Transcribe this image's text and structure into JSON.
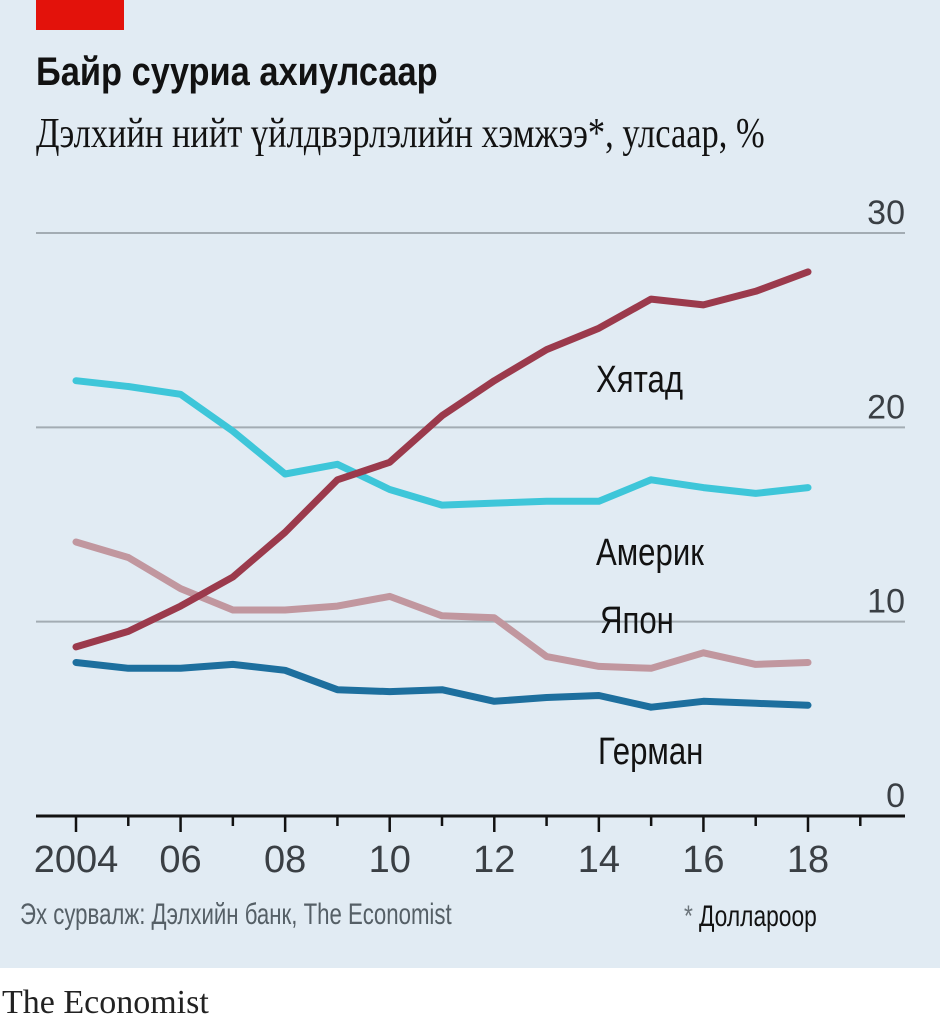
{
  "header": {
    "title": "Байр сууриа ахиулсаар",
    "subtitle": "Дэлхийн нийт үйлдвэрлэлийн хэмжээ*, улсаар, %"
  },
  "footer": {
    "source": "Эх сурвалж: Дэлхийн банк, The Economist",
    "footnote_mark": "*",
    "footnote_text": "Доллароор",
    "brand": "The Economist"
  },
  "colors": {
    "china": "#9b3a4c",
    "usa": "#3ec6d9",
    "japan": "#c1979f",
    "germany": "#1d6f9e",
    "accent": "#e3120b",
    "background": "#e1ebf3"
  },
  "chart_data": {
    "type": "line",
    "title": "Байр сууриа ахиулсаар",
    "subtitle": "Дэлхийн нийт үйлдвэрлэлийн хэмжээ*, улсаар, %",
    "xlabel": "",
    "ylabel": "",
    "x": [
      2004,
      2005,
      2006,
      2007,
      2008,
      2009,
      2010,
      2011,
      2012,
      2013,
      2014,
      2015,
      2016,
      2017,
      2018
    ],
    "xticks": [
      2004,
      2006,
      2008,
      2010,
      2012,
      2014,
      2016,
      2018
    ],
    "xtick_labels": [
      "2004",
      "06",
      "08",
      "10",
      "12",
      "14",
      "16",
      "18"
    ],
    "xlim": [
      2003.2,
      2020
    ],
    "ylim": [
      0,
      30
    ],
    "yticks": [
      0,
      10,
      20,
      30
    ],
    "ytick_labels": [
      "0",
      "10",
      "20",
      "30"
    ],
    "grid": true,
    "legend": "direct labels",
    "series": [
      {
        "name": "Хятад",
        "color": "#9b3a4c",
        "values": [
          8.7,
          9.5,
          10.8,
          12.3,
          14.6,
          17.3,
          18.2,
          20.6,
          22.4,
          24.0,
          25.1,
          26.6,
          26.3,
          27.0,
          28.0
        ]
      },
      {
        "name": "Америк",
        "color": "#3ec6d9",
        "values": [
          22.4,
          22.1,
          21.7,
          19.8,
          17.6,
          18.1,
          16.8,
          16.0,
          16.1,
          16.2,
          16.2,
          17.3,
          16.9,
          16.6,
          16.9
        ]
      },
      {
        "name": "Япон",
        "color": "#c1979f",
        "values": [
          14.1,
          13.3,
          11.7,
          10.6,
          10.6,
          10.8,
          11.3,
          10.3,
          10.2,
          8.2,
          7.7,
          7.6,
          8.4,
          7.8,
          7.9
        ]
      },
      {
        "name": "Герман",
        "color": "#1d6f9e",
        "values": [
          7.9,
          7.6,
          7.6,
          7.8,
          7.5,
          6.5,
          6.4,
          6.5,
          5.9,
          6.1,
          6.2,
          5.6,
          5.9,
          5.8,
          5.7
        ]
      }
    ]
  }
}
